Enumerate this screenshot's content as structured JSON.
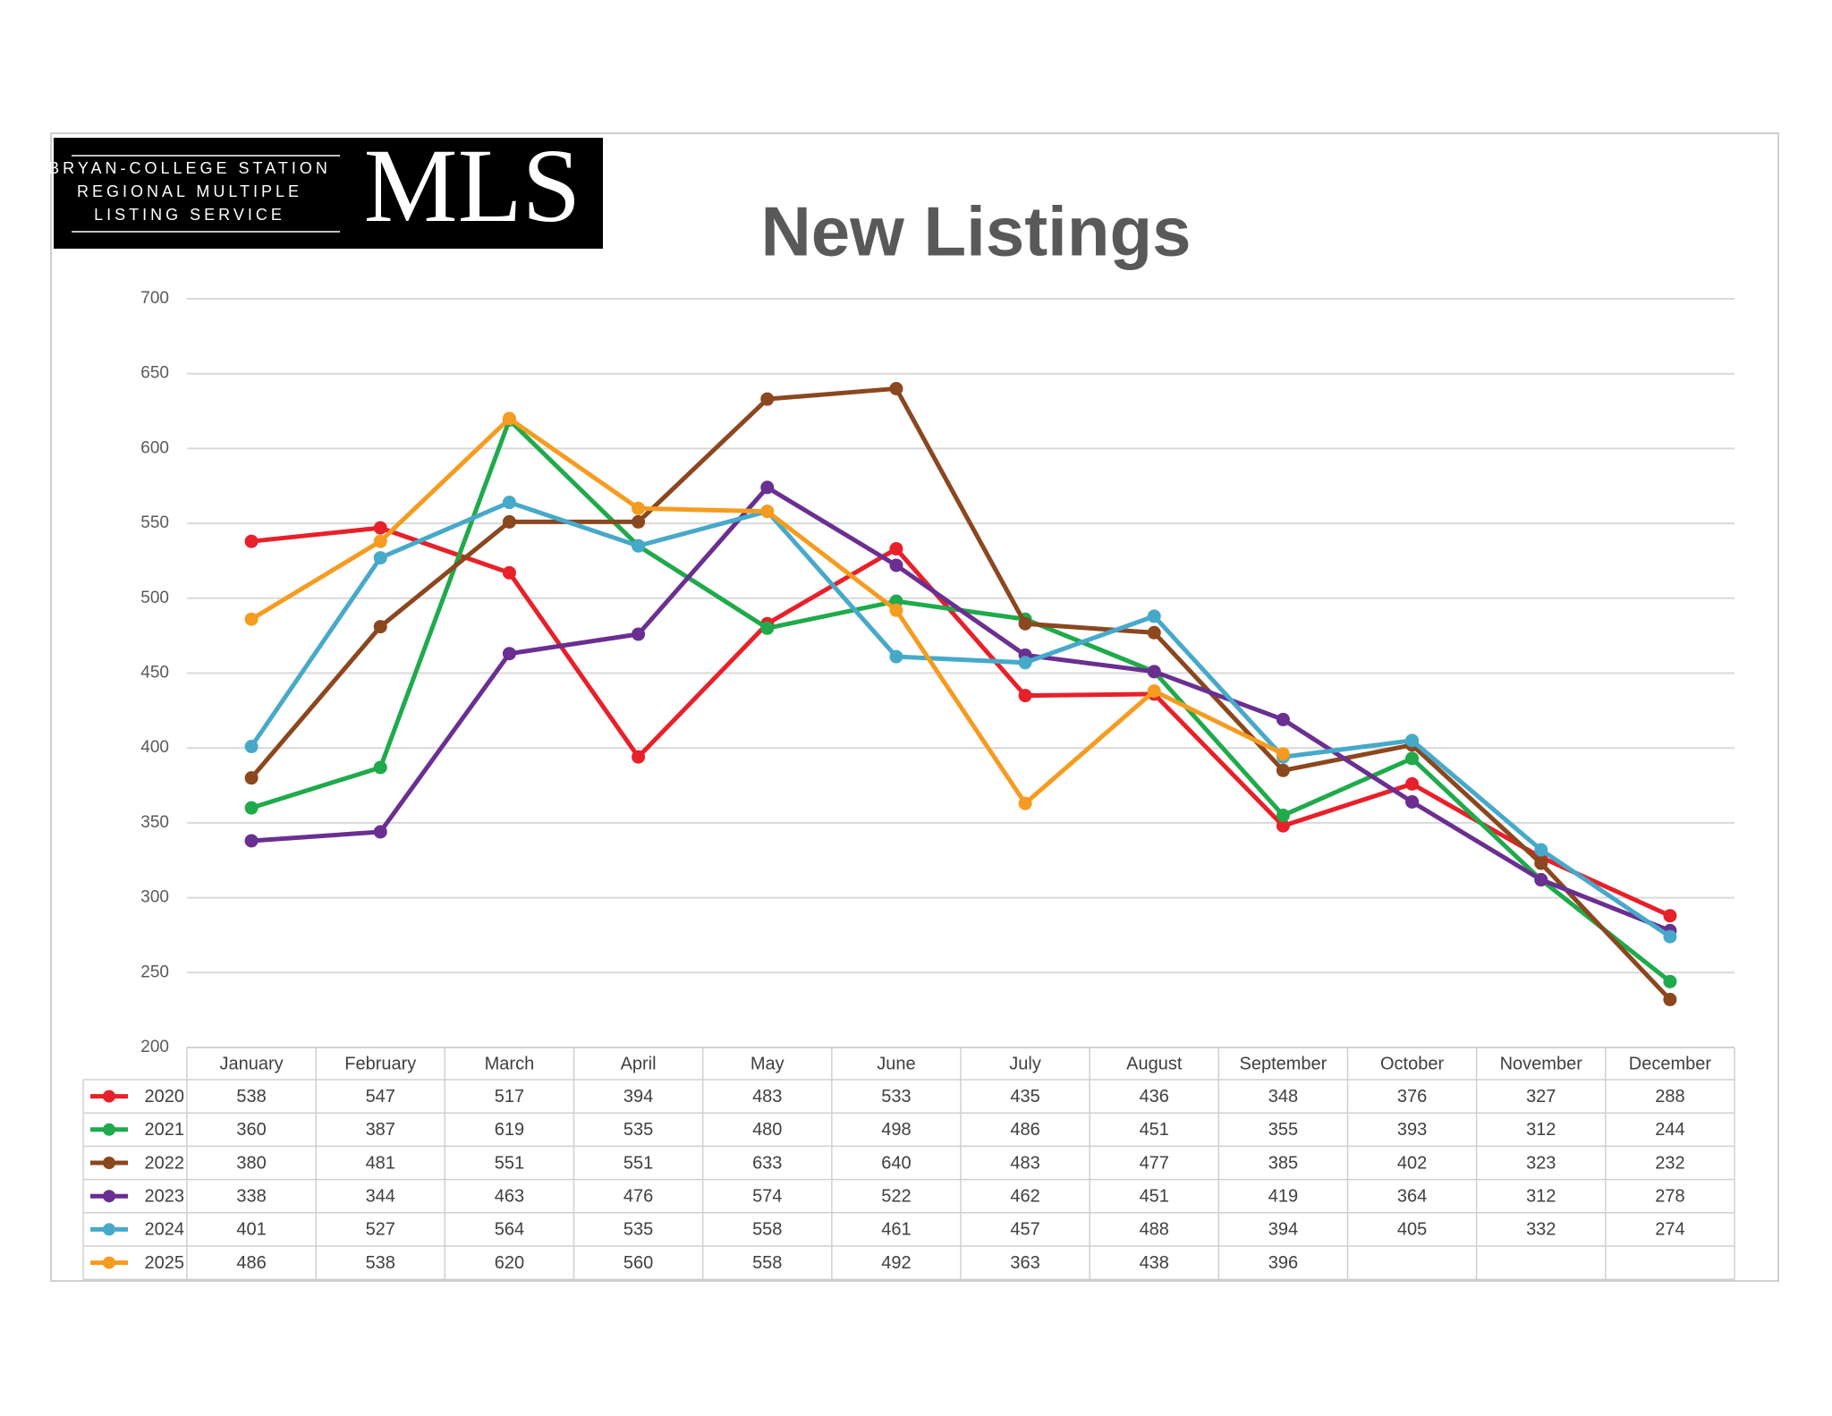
{
  "logo": {
    "lines": [
      "BRYAN-COLLEGE STATION",
      "REGIONAL MULTIPLE",
      "LISTING SERVICE"
    ],
    "mark": "MLS"
  },
  "chart_data": {
    "type": "line",
    "title": "New Listings",
    "categories": [
      "January",
      "February",
      "March",
      "April",
      "May",
      "June",
      "July",
      "August",
      "September",
      "October",
      "November",
      "December"
    ],
    "ylim": [
      200,
      700
    ],
    "yticks": [
      200,
      250,
      300,
      350,
      400,
      450,
      500,
      550,
      600,
      650,
      700
    ],
    "grid": true,
    "series": [
      {
        "name": "2020",
        "color": "#e8202a",
        "values": [
          538,
          547,
          517,
          394,
          483,
          533,
          435,
          436,
          348,
          376,
          327,
          288
        ]
      },
      {
        "name": "2021",
        "color": "#1faa4b",
        "values": [
          360,
          387,
          619,
          535,
          480,
          498,
          486,
          451,
          355,
          393,
          312,
          244
        ]
      },
      {
        "name": "2022",
        "color": "#8b471e",
        "values": [
          380,
          481,
          551,
          551,
          633,
          640,
          483,
          477,
          385,
          402,
          323,
          232
        ]
      },
      {
        "name": "2023",
        "color": "#6a2f91",
        "values": [
          338,
          344,
          463,
          476,
          574,
          522,
          462,
          451,
          419,
          364,
          312,
          278
        ]
      },
      {
        "name": "2024",
        "color": "#47a9c9",
        "values": [
          401,
          527,
          564,
          535,
          558,
          461,
          457,
          488,
          394,
          405,
          332,
          274
        ]
      },
      {
        "name": "2025",
        "color": "#f59c20",
        "values": [
          486,
          538,
          620,
          560,
          558,
          492,
          363,
          438,
          396,
          null,
          null,
          null
        ]
      }
    ]
  }
}
